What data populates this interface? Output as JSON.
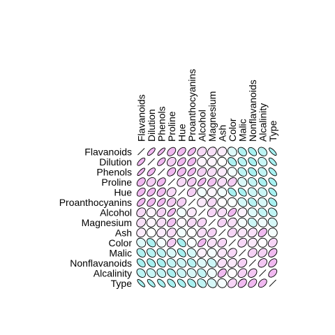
{
  "chart_data": {
    "type": "heatmap",
    "variables": [
      "Flavanoids",
      "Dilution",
      "Phenols",
      "Proline",
      "Hue",
      "Proanthocyanins",
      "Alcohol",
      "Magnesium",
      "Ash",
      "Color",
      "Malic",
      "Nonflavanoids",
      "Alcalinity",
      "Type"
    ],
    "correlation": [
      [
        1.0,
        0.79,
        0.86,
        0.49,
        0.54,
        0.65,
        0.24,
        0.2,
        0.12,
        -0.17,
        -0.41,
        -0.54,
        -0.35,
        -0.85
      ],
      [
        0.79,
        1.0,
        0.7,
        0.31,
        0.57,
        0.52,
        0.07,
        0.07,
        0.0,
        -0.43,
        -0.37,
        -0.5,
        -0.28,
        -0.79
      ],
      [
        0.86,
        0.7,
        1.0,
        0.5,
        0.43,
        0.61,
        0.29,
        0.21,
        0.13,
        -0.06,
        -0.34,
        -0.45,
        -0.32,
        -0.72
      ],
      [
        0.49,
        0.31,
        0.5,
        1.0,
        0.24,
        0.33,
        0.64,
        0.39,
        0.22,
        0.32,
        -0.19,
        -0.31,
        -0.44,
        -0.63
      ],
      [
        0.54,
        0.57,
        0.43,
        0.24,
        1.0,
        0.3,
        -0.07,
        0.06,
        -0.07,
        -0.52,
        -0.56,
        -0.26,
        -0.27,
        -0.62
      ],
      [
        0.65,
        0.52,
        0.61,
        0.33,
        0.3,
        1.0,
        0.14,
        0.24,
        0.01,
        -0.03,
        -0.22,
        -0.37,
        -0.2,
        -0.5
      ],
      [
        0.24,
        0.07,
        0.29,
        0.64,
        -0.07,
        0.14,
        1.0,
        0.27,
        0.21,
        0.55,
        0.09,
        -0.16,
        -0.31,
        -0.33
      ],
      [
        0.2,
        0.07,
        0.21,
        0.39,
        0.06,
        0.24,
        0.27,
        1.0,
        0.29,
        0.2,
        -0.05,
        -0.26,
        -0.08,
        -0.21
      ],
      [
        0.12,
        0.0,
        0.13,
        0.22,
        -0.07,
        0.01,
        0.21,
        0.29,
        1.0,
        0.26,
        0.16,
        0.19,
        0.44,
        -0.05
      ],
      [
        -0.17,
        -0.43,
        -0.06,
        0.32,
        -0.52,
        -0.03,
        0.55,
        0.2,
        0.26,
        1.0,
        0.25,
        0.14,
        0.02,
        0.27
      ],
      [
        -0.41,
        -0.37,
        -0.34,
        -0.19,
        -0.56,
        -0.22,
        0.09,
        -0.05,
        0.16,
        0.25,
        1.0,
        0.29,
        0.29,
        0.44
      ],
      [
        -0.54,
        -0.5,
        -0.45,
        -0.31,
        -0.26,
        -0.37,
        -0.16,
        -0.26,
        0.19,
        0.14,
        0.29,
        1.0,
        0.36,
        0.49
      ],
      [
        -0.35,
        -0.28,
        -0.32,
        -0.44,
        -0.27,
        -0.2,
        -0.31,
        -0.08,
        0.44,
        0.02,
        0.29,
        0.36,
        1.0,
        0.52
      ],
      [
        -0.85,
        -0.79,
        -0.72,
        -0.63,
        -0.62,
        -0.5,
        -0.33,
        -0.21,
        -0.05,
        0.27,
        0.44,
        0.49,
        0.52,
        1.0
      ]
    ],
    "colors": {
      "positive": "#f0b8f0",
      "negative": "#a8f0f0",
      "neutral": "#ffffff",
      "outline": "#000000"
    }
  }
}
